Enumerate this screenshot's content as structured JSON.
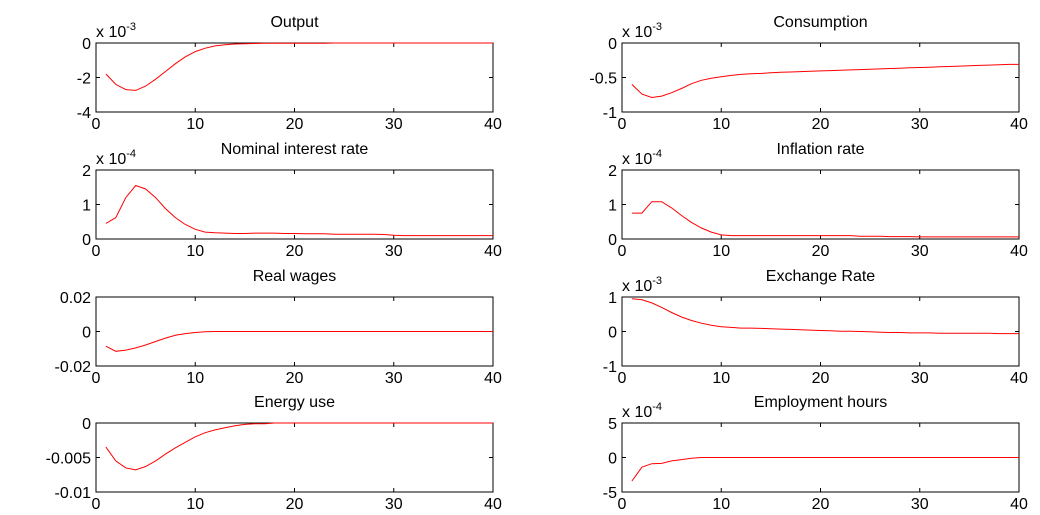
{
  "chart_data": [
    {
      "type": "line",
      "title": "Output",
      "multiplier": {
        "base": "x 10",
        "exponent": "-3"
      },
      "xlim": [
        0,
        40
      ],
      "ylim": [
        -4,
        0
      ],
      "xticks": [
        "0",
        "10",
        "20",
        "30",
        "40"
      ],
      "yticks": [
        "0",
        "-2",
        "-4"
      ],
      "ytick_values": [
        0,
        -2,
        -4
      ],
      "series": [
        {
          "color": "#ff0000",
          "x": [
            1,
            2,
            3,
            4,
            5,
            6,
            7,
            8,
            9,
            10,
            11,
            12,
            13,
            14,
            15,
            16,
            17,
            18,
            19,
            20,
            21,
            22,
            23,
            24,
            25,
            26,
            27,
            28,
            29,
            30,
            31,
            32,
            33,
            34,
            35,
            36,
            37,
            38,
            39,
            40
          ],
          "y": [
            -1.8,
            -2.4,
            -2.7,
            -2.75,
            -2.5,
            -2.1,
            -1.65,
            -1.2,
            -0.8,
            -0.5,
            -0.3,
            -0.17,
            -0.1,
            -0.06,
            -0.04,
            -0.03,
            -0.02,
            -0.02,
            -0.01,
            -0.01,
            -0.01,
            -0.01,
            -0.01,
            0,
            0,
            0,
            0,
            0,
            0,
            0,
            0,
            0,
            0,
            0,
            0,
            0,
            0,
            0,
            0,
            0
          ]
        }
      ]
    },
    {
      "type": "line",
      "title": "Consumption",
      "multiplier": {
        "base": "x 10",
        "exponent": "-3"
      },
      "xlim": [
        0,
        40
      ],
      "ylim": [
        -1,
        0
      ],
      "xticks": [
        "0",
        "10",
        "20",
        "30",
        "40"
      ],
      "yticks": [
        "0",
        "-0.5",
        "-1"
      ],
      "ytick_values": [
        0,
        -0.5,
        -1
      ],
      "series": [
        {
          "color": "#ff0000",
          "x": [
            1,
            2,
            3,
            4,
            5,
            6,
            7,
            8,
            9,
            10,
            11,
            12,
            13,
            14,
            15,
            16,
            17,
            18,
            19,
            20,
            21,
            22,
            23,
            24,
            25,
            26,
            27,
            28,
            29,
            30,
            31,
            32,
            33,
            34,
            35,
            36,
            37,
            38,
            39,
            40
          ],
          "y": [
            -0.6,
            -0.74,
            -0.79,
            -0.77,
            -0.72,
            -0.66,
            -0.59,
            -0.54,
            -0.51,
            -0.49,
            -0.47,
            -0.455,
            -0.445,
            -0.44,
            -0.43,
            -0.425,
            -0.42,
            -0.415,
            -0.41,
            -0.405,
            -0.4,
            -0.395,
            -0.39,
            -0.385,
            -0.38,
            -0.375,
            -0.37,
            -0.365,
            -0.36,
            -0.355,
            -0.35,
            -0.345,
            -0.34,
            -0.335,
            -0.33,
            -0.325,
            -0.32,
            -0.315,
            -0.31,
            -0.31
          ]
        }
      ]
    },
    {
      "type": "line",
      "title": "Nominal interest rate",
      "multiplier": {
        "base": "x 10",
        "exponent": "-4"
      },
      "xlim": [
        0,
        40
      ],
      "ylim": [
        0,
        2
      ],
      "xticks": [
        "0",
        "10",
        "20",
        "30",
        "40"
      ],
      "yticks": [
        "2",
        "1",
        "0"
      ],
      "ytick_values": [
        2,
        1,
        0
      ],
      "series": [
        {
          "color": "#ff0000",
          "x": [
            1,
            2,
            3,
            4,
            5,
            6,
            7,
            8,
            9,
            10,
            11,
            12,
            13,
            14,
            15,
            16,
            17,
            18,
            19,
            20,
            21,
            22,
            23,
            24,
            25,
            26,
            27,
            28,
            29,
            30,
            31,
            32,
            33,
            34,
            35,
            36,
            37,
            38,
            39,
            40
          ],
          "y": [
            0.45,
            0.62,
            1.2,
            1.55,
            1.45,
            1.2,
            0.88,
            0.62,
            0.42,
            0.28,
            0.2,
            0.18,
            0.17,
            0.16,
            0.16,
            0.17,
            0.17,
            0.17,
            0.16,
            0.16,
            0.15,
            0.15,
            0.15,
            0.14,
            0.14,
            0.14,
            0.14,
            0.14,
            0.13,
            0.11,
            0.1,
            0.1,
            0.1,
            0.1,
            0.1,
            0.1,
            0.1,
            0.1,
            0.1,
            0.1
          ]
        }
      ]
    },
    {
      "type": "line",
      "title": "Inflation rate",
      "multiplier": {
        "base": "x 10",
        "exponent": "-4"
      },
      "xlim": [
        0,
        40
      ],
      "ylim": [
        0,
        2
      ],
      "xticks": [
        "0",
        "10",
        "20",
        "30",
        "40"
      ],
      "yticks": [
        "2",
        "1",
        "0"
      ],
      "ytick_values": [
        2,
        1,
        0
      ],
      "series": [
        {
          "color": "#ff0000",
          "x": [
            1,
            2,
            3,
            4,
            5,
            6,
            7,
            8,
            9,
            10,
            11,
            12,
            13,
            14,
            15,
            16,
            17,
            18,
            19,
            20,
            21,
            22,
            23,
            24,
            25,
            26,
            27,
            28,
            29,
            30,
            31,
            32,
            33,
            34,
            35,
            36,
            37,
            38,
            39,
            40
          ],
          "y": [
            0.75,
            0.75,
            1.08,
            1.08,
            0.9,
            0.68,
            0.48,
            0.32,
            0.2,
            0.12,
            0.1,
            0.1,
            0.1,
            0.1,
            0.1,
            0.1,
            0.1,
            0.1,
            0.1,
            0.1,
            0.1,
            0.1,
            0.1,
            0.08,
            0.08,
            0.08,
            0.07,
            0.07,
            0.07,
            0.06,
            0.06,
            0.06,
            0.06,
            0.06,
            0.06,
            0.06,
            0.06,
            0.06,
            0.06,
            0.06
          ]
        }
      ]
    },
    {
      "type": "line",
      "title": "Real wages",
      "xlim": [
        0,
        40
      ],
      "ylim": [
        -0.02,
        0.02
      ],
      "xticks": [
        "0",
        "10",
        "20",
        "30",
        "40"
      ],
      "yticks": [
        "0.02",
        "0",
        "-0.02"
      ],
      "ytick_values": [
        0.02,
        0,
        -0.02
      ],
      "series": [
        {
          "color": "#ff0000",
          "x": [
            1,
            2,
            3,
            4,
            5,
            6,
            7,
            8,
            9,
            10,
            11,
            12,
            13,
            14,
            15,
            16,
            17,
            18,
            19,
            20,
            21,
            22,
            23,
            24,
            25,
            26,
            27,
            28,
            29,
            30,
            31,
            32,
            33,
            34,
            35,
            36,
            37,
            38,
            39,
            40
          ],
          "y": [
            -0.0085,
            -0.0115,
            -0.0108,
            -0.0095,
            -0.0078,
            -0.0058,
            -0.0038,
            -0.0022,
            -0.0012,
            -0.0006,
            -0.0002,
            0,
            0,
            0,
            0,
            0,
            0,
            0,
            0,
            0,
            0,
            0,
            0,
            0,
            0,
            0,
            0,
            0,
            0,
            0,
            0,
            0,
            0,
            0,
            0,
            0,
            0,
            0,
            0,
            0
          ]
        }
      ]
    },
    {
      "type": "line",
      "title": "Exchange Rate",
      "multiplier": {
        "base": "x 10",
        "exponent": "-3"
      },
      "xlim": [
        0,
        40
      ],
      "ylim": [
        -1,
        1
      ],
      "xticks": [
        "0",
        "10",
        "20",
        "30",
        "40"
      ],
      "yticks": [
        "1",
        "0",
        "-1"
      ],
      "ytick_values": [
        1,
        0,
        -1
      ],
      "series": [
        {
          "color": "#ff0000",
          "x": [
            1,
            2,
            3,
            4,
            5,
            6,
            7,
            8,
            9,
            10,
            11,
            12,
            13,
            14,
            15,
            16,
            17,
            18,
            19,
            20,
            21,
            22,
            23,
            24,
            25,
            26,
            27,
            28,
            29,
            30,
            31,
            32,
            33,
            34,
            35,
            36,
            37,
            38,
            39,
            40
          ],
          "y": [
            0.95,
            0.92,
            0.83,
            0.7,
            0.55,
            0.42,
            0.32,
            0.24,
            0.18,
            0.14,
            0.12,
            0.1,
            0.1,
            0.09,
            0.08,
            0.07,
            0.06,
            0.05,
            0.04,
            0.03,
            0.02,
            0.01,
            0.01,
            0,
            -0.01,
            -0.02,
            -0.03,
            -0.03,
            -0.04,
            -0.04,
            -0.04,
            -0.05,
            -0.05,
            -0.05,
            -0.05,
            -0.05,
            -0.05,
            -0.06,
            -0.06,
            -0.06
          ]
        }
      ]
    },
    {
      "type": "line",
      "title": "Energy use",
      "xlim": [
        0,
        40
      ],
      "ylim": [
        -0.01,
        0
      ],
      "xticks": [
        "0",
        "10",
        "20",
        "30",
        "40"
      ],
      "yticks": [
        "0",
        "-0.005",
        "-0.01"
      ],
      "ytick_values": [
        0,
        -0.005,
        -0.01
      ],
      "series": [
        {
          "color": "#ff0000",
          "x": [
            1,
            2,
            3,
            4,
            5,
            6,
            7,
            8,
            9,
            10,
            11,
            12,
            13,
            14,
            15,
            16,
            17,
            18,
            19,
            20,
            21,
            22,
            23,
            24,
            25,
            26,
            27,
            28,
            29,
            30,
            31,
            32,
            33,
            34,
            35,
            36,
            37,
            38,
            39,
            40
          ],
          "y": [
            -0.0035,
            -0.0055,
            -0.0065,
            -0.0068,
            -0.0063,
            -0.0055,
            -0.0045,
            -0.0036,
            -0.0028,
            -0.002,
            -0.0014,
            -0.001,
            -0.0007,
            -0.0004,
            -0.0002,
            -0.0001,
            -0.0001,
            0,
            0,
            0,
            0,
            0,
            0,
            0,
            0,
            0,
            0,
            0,
            0,
            0,
            0,
            0,
            0,
            0,
            0,
            0,
            0,
            0,
            0,
            0
          ]
        }
      ]
    },
    {
      "type": "line",
      "title": "Employment hours",
      "multiplier": {
        "base": "x 10",
        "exponent": "-4"
      },
      "xlim": [
        0,
        40
      ],
      "ylim": [
        -5,
        5
      ],
      "xticks": [
        "0",
        "10",
        "20",
        "30",
        "40"
      ],
      "yticks": [
        "5",
        "0",
        "-5"
      ],
      "ytick_values": [
        5,
        0,
        -5
      ],
      "series": [
        {
          "color": "#ff0000",
          "x": [
            1,
            2,
            3,
            4,
            5,
            6,
            7,
            8,
            9,
            10,
            11,
            12,
            13,
            14,
            15,
            16,
            17,
            18,
            19,
            20,
            21,
            22,
            23,
            24,
            25,
            26,
            27,
            28,
            29,
            30,
            31,
            32,
            33,
            34,
            35,
            36,
            37,
            38,
            39,
            40
          ],
          "y": [
            -3.4,
            -1.4,
            -0.9,
            -0.85,
            -0.5,
            -0.3,
            -0.1,
            0,
            0,
            0,
            0,
            0,
            0,
            0,
            0,
            0,
            0,
            0,
            0,
            0,
            0,
            0,
            0,
            0,
            0,
            0,
            0,
            0,
            0,
            0,
            0,
            0,
            0,
            0,
            0,
            0,
            0,
            0,
            0,
            0
          ]
        }
      ]
    }
  ]
}
